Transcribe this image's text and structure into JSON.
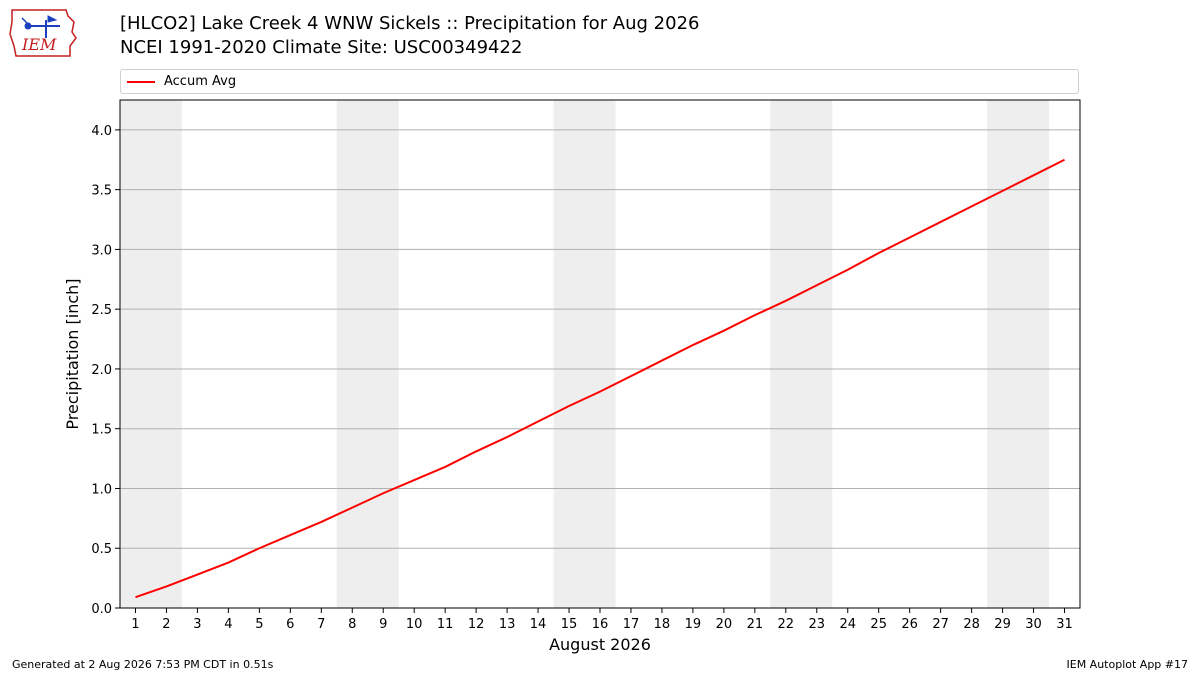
{
  "header": {
    "title_line1": "[HLCO2] Lake Creek 4 WNW Sickels :: Precipitation for Aug 2026",
    "title_line2": "NCEI 1991-2020 Climate Site: USC00349422"
  },
  "logo": {
    "text": "IEM",
    "icon": "iem-iowa-logo-icon"
  },
  "footer": {
    "left": "Generated at 2 Aug 2026 7:53 PM CDT in 0.51s",
    "right": "IEM Autoplot App #17"
  },
  "colors": {
    "line": "#ff0000",
    "weekend_band": "#eeeeee",
    "grid": "#b0b0b0"
  },
  "chart_data": {
    "type": "line",
    "xlabel": "August 2026",
    "ylabel": "Precipitation [inch]",
    "x": [
      1,
      2,
      3,
      4,
      5,
      6,
      7,
      8,
      9,
      10,
      11,
      12,
      13,
      14,
      15,
      16,
      17,
      18,
      19,
      20,
      21,
      22,
      23,
      24,
      25,
      26,
      27,
      28,
      29,
      30,
      31
    ],
    "ylim": [
      0,
      4.25
    ],
    "yticks": [
      0.0,
      0.5,
      1.0,
      1.5,
      2.0,
      2.5,
      3.0,
      3.5,
      4.0
    ],
    "ytick_labels": [
      "0.0",
      "0.5",
      "1.0",
      "1.5",
      "2.0",
      "2.5",
      "3.0",
      "3.5",
      "4.0"
    ],
    "grid": "horizontal",
    "legend_position": "top",
    "weekend_bands": [
      [
        1,
        2
      ],
      [
        8,
        9
      ],
      [
        15,
        16
      ],
      [
        22,
        23
      ],
      [
        29,
        30
      ]
    ],
    "series": [
      {
        "name": "Accum Avg",
        "color": "#ff0000",
        "values": [
          0.09,
          0.18,
          0.28,
          0.38,
          0.5,
          0.61,
          0.72,
          0.84,
          0.96,
          1.07,
          1.18,
          1.31,
          1.43,
          1.56,
          1.69,
          1.81,
          1.94,
          2.07,
          2.2,
          2.32,
          2.45,
          2.57,
          2.7,
          2.83,
          2.97,
          3.1,
          3.23,
          3.36,
          3.49,
          3.62,
          3.75
        ]
      }
    ]
  }
}
